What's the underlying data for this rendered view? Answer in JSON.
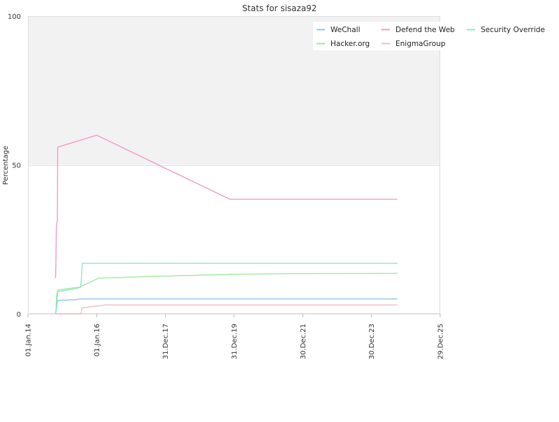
{
  "chart_data": {
    "type": "line",
    "title": "Stats for sisaza92",
    "xlabel": "",
    "ylabel": "Percentage",
    "x_range": [
      "2014-01-01",
      "2025-12-29"
    ],
    "ylim": [
      0,
      100
    ],
    "y_ticks": [
      0,
      50,
      100
    ],
    "x_ticks": [
      {
        "date": "2014-01-01",
        "label": "01.Jan.14"
      },
      {
        "date": "2016-01-01",
        "label": "01.Jan.16"
      },
      {
        "date": "2017-12-31",
        "label": "31.Dec.17"
      },
      {
        "date": "2019-12-31",
        "label": "31.Dec.19"
      },
      {
        "date": "2021-12-30",
        "label": "30.Dec.21"
      },
      {
        "date": "2023-12-30",
        "label": "30.Dec.23"
      },
      {
        "date": "2025-12-29",
        "label": "29.Dec.25"
      }
    ],
    "bands": [
      {
        "from": 50,
        "to": 100,
        "color": "#f2f2f2"
      }
    ],
    "grid": true,
    "legend_position": "top-right",
    "series": [
      {
        "name": "WeChall",
        "color": "#8ec4ec",
        "points": [
          [
            "2014-10-21",
            0
          ],
          [
            "2014-10-26",
            1
          ],
          [
            "2014-11-01",
            2
          ],
          [
            "2014-11-10",
            4.5
          ],
          [
            "2015-01-01",
            4.6
          ],
          [
            "2015-06-01",
            4.8
          ],
          [
            "2015-07-01",
            5
          ],
          [
            "2024-10-01",
            5
          ]
        ]
      },
      {
        "name": "Hacker.org",
        "color": "#9eea9e",
        "points": [
          [
            "2014-10-21",
            0
          ],
          [
            "2014-10-28",
            2
          ],
          [
            "2014-10-31",
            6
          ],
          [
            "2014-11-15",
            8
          ],
          [
            "2015-07-01",
            9
          ],
          [
            "2016-01-25",
            12
          ],
          [
            "2017-06-01",
            12.5
          ],
          [
            "2019-01-01",
            13
          ],
          [
            "2019-12-31",
            13.3
          ],
          [
            "2021-06-01",
            13.5
          ],
          [
            "2024-10-01",
            13.6
          ]
        ]
      },
      {
        "name": "Defend the Web",
        "color": "#f29ac8",
        "points": [
          [
            "2014-10-21",
            12
          ],
          [
            "2014-10-25",
            17
          ],
          [
            "2014-10-30",
            30
          ],
          [
            "2014-11-08",
            31
          ],
          [
            "2014-11-10",
            36
          ],
          [
            "2014-11-13",
            56
          ],
          [
            "2016-01-01",
            60
          ],
          [
            "2019-11-15",
            38.5
          ],
          [
            "2024-10-01",
            38.5
          ]
        ]
      },
      {
        "name": "EnigmaGroup",
        "color": "#f6bcc4",
        "points": [
          [
            "2014-10-21",
            0
          ],
          [
            "2015-07-20",
            0
          ],
          [
            "2015-07-28",
            2
          ],
          [
            "2016-04-01",
            3
          ],
          [
            "2024-10-01",
            3
          ]
        ]
      },
      {
        "name": "Security Override",
        "color": "#8ee8c8",
        "points": [
          [
            "2014-10-21",
            0
          ],
          [
            "2014-10-28",
            1
          ],
          [
            "2014-11-05",
            5
          ],
          [
            "2014-11-15",
            7.5
          ],
          [
            "2015-06-01",
            8.5
          ],
          [
            "2015-07-15",
            9
          ],
          [
            "2015-07-25",
            13
          ],
          [
            "2015-08-01",
            17
          ],
          [
            "2024-10-01",
            17
          ]
        ]
      }
    ]
  }
}
